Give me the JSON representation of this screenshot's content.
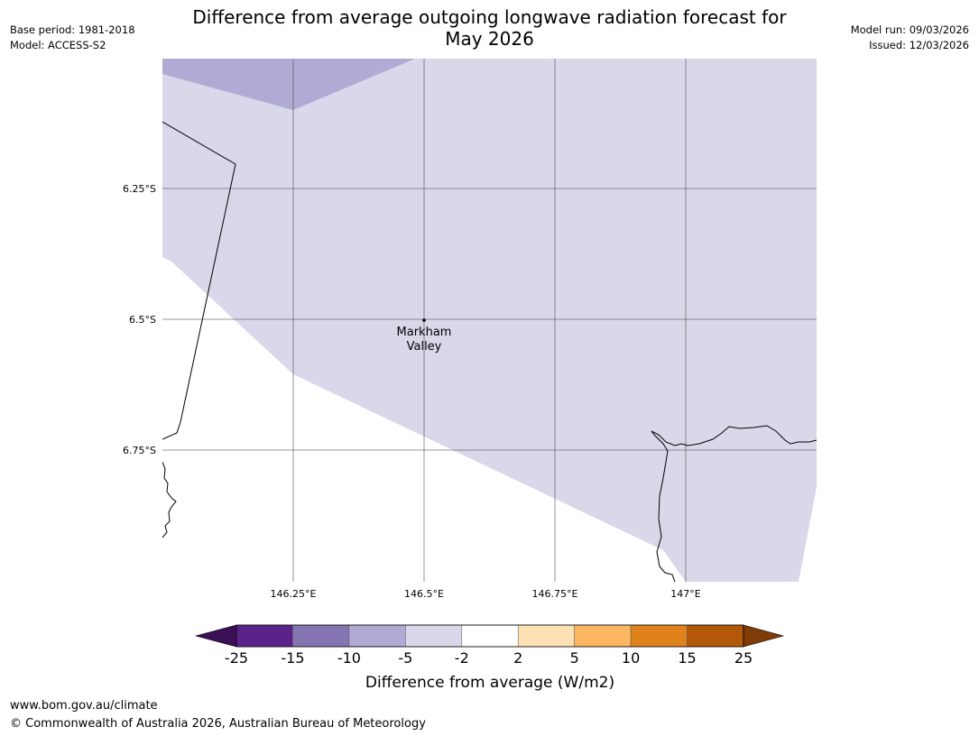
{
  "header": {
    "title_line1": "Difference from average outgoing longwave radiation forecast for",
    "title_line2": "May 2026",
    "base_period": "Base period: 1981-2018",
    "model": "Model: ACCESS-S2",
    "model_run": "Model run: 09/03/2026",
    "issued": "Issued: 12/03/2026"
  },
  "map": {
    "place_label_line1": "Markham",
    "place_label_line2": "Valley",
    "lat_labels": [
      "6.25°S",
      "6.5°S",
      "6.75°S"
    ],
    "lon_labels": [
      "146.25°E",
      "146.5°E",
      "146.75°E",
      "147°E"
    ],
    "colors": {
      "band_neg5_neg2": "#d8d8ea",
      "band_neg10_neg5": "#b0aad4",
      "gridline": "#555555",
      "coastline": "#000000"
    }
  },
  "legend": {
    "title": "Difference from average (W/m2)",
    "tick_labels": [
      "-25",
      "-15",
      "-10",
      "-5",
      "-2",
      "2",
      "5",
      "10",
      "15",
      "25"
    ],
    "colors": [
      "#3b0f55",
      "#5b2389",
      "#8575b3",
      "#b0aad4",
      "#d8d8ea",
      "#ffffff",
      "#fde0b3",
      "#fbb761",
      "#e0821b",
      "#b35708",
      "#7f3b08"
    ]
  },
  "footer": {
    "url": "www.bom.gov.au/climate",
    "copyright": "© Commonwealth of Australia 2026, Australian Bureau of Meteorology"
  }
}
